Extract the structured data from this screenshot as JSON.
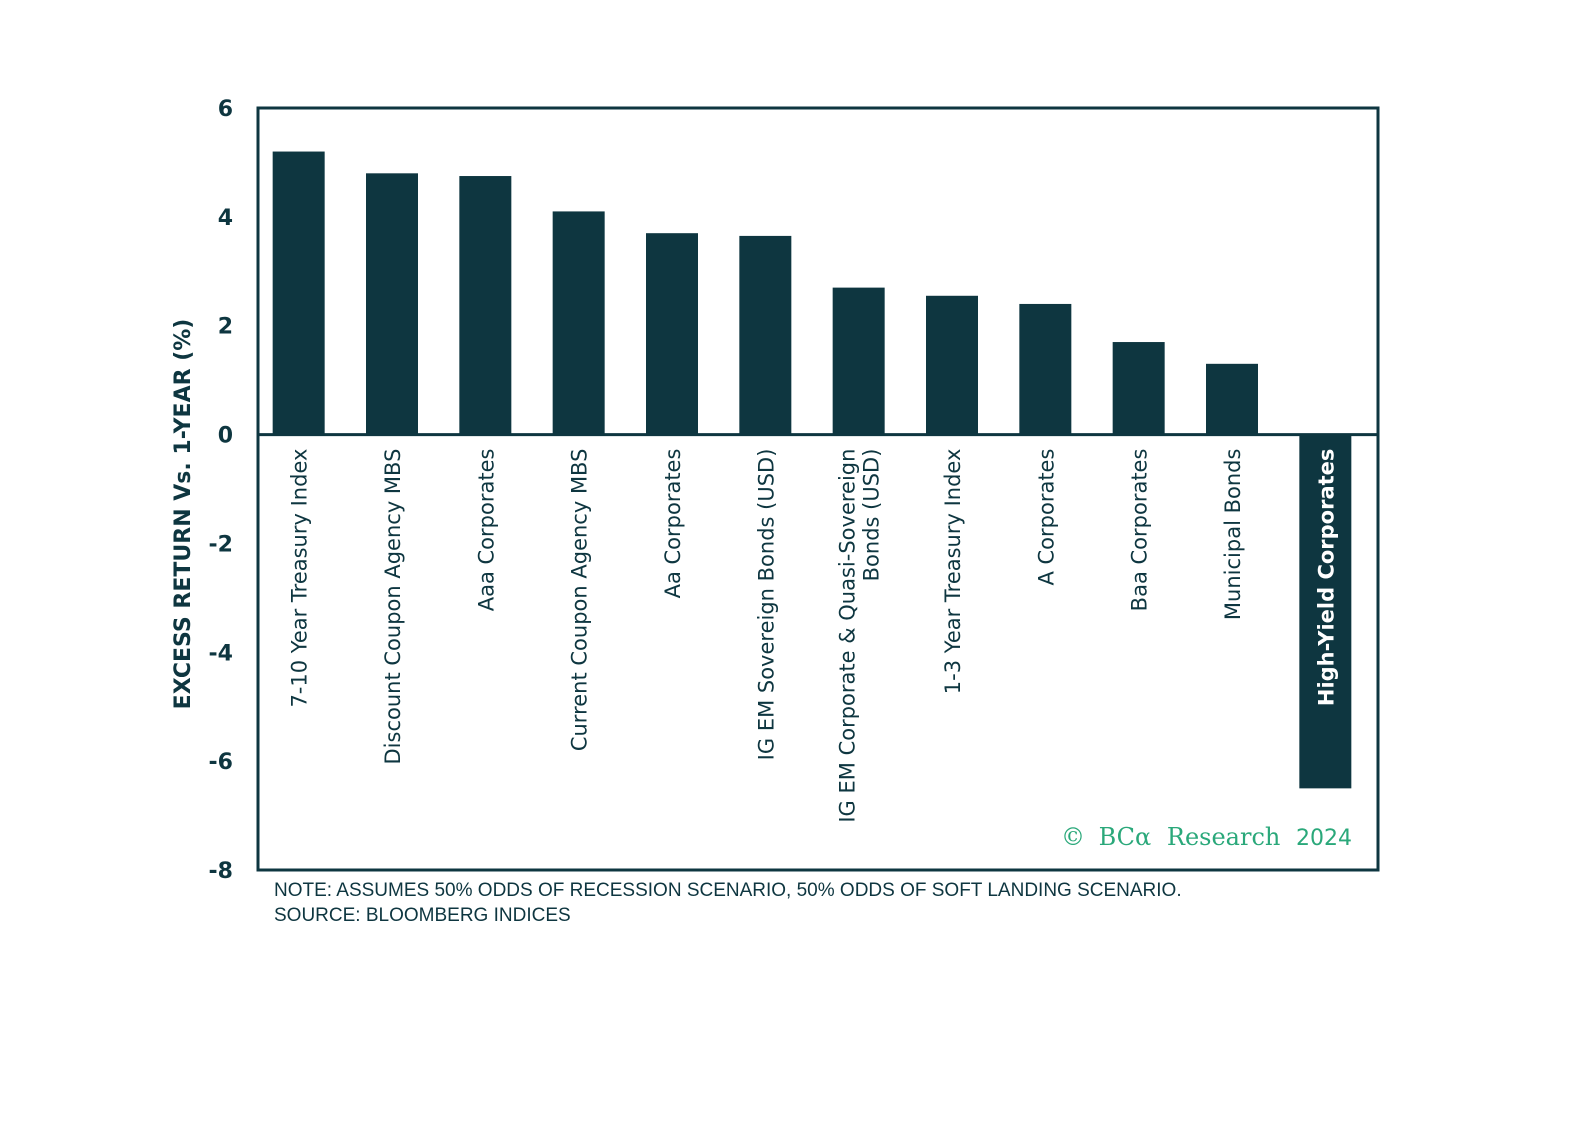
{
  "chart_data": {
    "type": "bar",
    "title": "",
    "xlabel": "",
    "ylabel": "EXCESS RETURN Vs. 1-YEAR (%)",
    "ylim": [
      -8,
      6
    ],
    "yticks": [
      6,
      4,
      2,
      0,
      -2,
      -4,
      -6,
      -8
    ],
    "grid": false,
    "categories": [
      "7-10 Year Treasury Index",
      "Discount Coupon Agency MBS",
      "Aaa Corporates",
      "Current Coupon Agency MBS",
      "Aa Corporates",
      "IG EM Sovereign Bonds (USD)",
      "IG EM Corporate & Quasi-Sovereign Bonds (USD)",
      "1-3 Year Treasury Index",
      "A Corporates",
      "Baa Corporates",
      "Municipal Bonds",
      "High-Yield Corporates"
    ],
    "category_lines": [
      [
        "7-10 Year Treasury Index"
      ],
      [
        "Discount Coupon Agency MBS"
      ],
      [
        "Aaa Corporates"
      ],
      [
        "Current Coupon Agency MBS"
      ],
      [
        "Aa Corporates"
      ],
      [
        "IG EM Sovereign Bonds (USD)"
      ],
      [
        "IG EM Corporate & Quasi-Sovereign",
        "Bonds (USD)"
      ],
      [
        "1-3 Year Treasury Index"
      ],
      [
        "A Corporates"
      ],
      [
        "Baa Corporates"
      ],
      [
        "Municipal Bonds"
      ],
      [
        "High-Yield Corporates"
      ]
    ],
    "values": [
      5.2,
      4.8,
      4.75,
      4.1,
      3.7,
      3.65,
      2.7,
      2.55,
      2.4,
      1.7,
      1.3,
      -6.5
    ],
    "bar_color": "#0e3640"
  },
  "copyright": {
    "symbol": "©",
    "brand": "BCα",
    "name": "Research",
    "year": "2024",
    "color": "#2aa87a"
  },
  "notes": {
    "note": "NOTE: ASSUMES 50% ODDS OF RECESSION SCENARIO, 50% ODDS OF SOFT LANDING SCENARIO.",
    "source": "SOURCE: BLOOMBERG INDICES"
  }
}
